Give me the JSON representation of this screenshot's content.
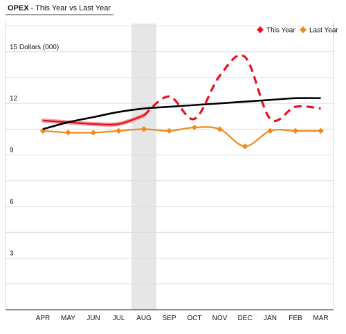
{
  "header": {
    "title_bold": "OPEX",
    "title_rest": "- This Year vs Last Year"
  },
  "chart_data": {
    "type": "line",
    "ylabel": "15 Dollars (000)",
    "categories": [
      "APR",
      "MAY",
      "JUN",
      "JUL",
      "AUG",
      "SEP",
      "OCT",
      "NOV",
      "DEC",
      "JAN",
      "FEB",
      "MAR"
    ],
    "ylim": [
      0,
      16.8
    ],
    "yticks": [
      3,
      6,
      9,
      12
    ],
    "grid": true,
    "legend_position": "top-right",
    "highlighted_category": "AUG",
    "series": [
      {
        "name": "This Year",
        "color": "#e8101e",
        "style": "solid-then-dashed",
        "values": [
          11.0,
          10.9,
          10.8,
          10.8,
          11.3,
          12.4,
          11.1,
          13.6,
          14.7,
          11.1,
          11.8,
          11.7
        ]
      },
      {
        "name": "Last Year",
        "color": "#f08a1c",
        "style": "solid",
        "values": [
          10.4,
          10.3,
          10.3,
          10.4,
          10.5,
          10.4,
          10.6,
          10.5,
          9.5,
          10.4,
          10.4,
          10.4
        ]
      }
    ],
    "trendline": {
      "color": "#000000",
      "values": [
        10.5,
        10.9,
        11.2,
        11.5,
        11.7,
        11.8,
        11.9,
        12.0,
        12.1,
        12.2,
        12.3,
        12.3
      ]
    }
  }
}
